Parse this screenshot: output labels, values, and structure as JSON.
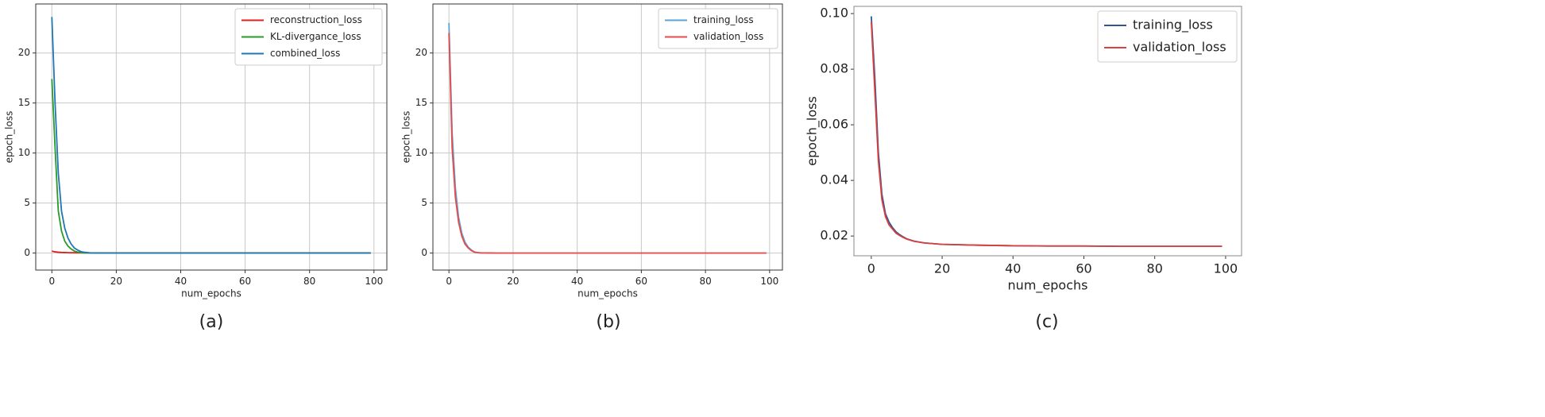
{
  "chart_data": [
    {
      "type": "line",
      "caption": "(a)",
      "xlabel": "num_epochs",
      "ylabel": "epoch_loss",
      "grid": true,
      "legend": "upper right",
      "x": [
        0,
        1,
        2,
        3,
        4,
        5,
        6,
        7,
        8,
        9,
        10,
        12,
        15,
        20,
        30,
        40,
        50,
        60,
        70,
        80,
        90,
        99
      ],
      "series": [
        {
          "name": "reconstruction_loss",
          "color": "#e0201c",
          "values": [
            0.2,
            0.12,
            0.08,
            0.06,
            0.05,
            0.04,
            0.03,
            0.03,
            0.02,
            0.02,
            0.02,
            0.02,
            0.02,
            0.02,
            0.02,
            0.02,
            0.02,
            0.02,
            0.02,
            0.02,
            0.02,
            0.02
          ]
        },
        {
          "name": "KL-divergance_loss",
          "color": "#2a9a2a",
          "values": [
            17.4,
            10.5,
            4.2,
            2.2,
            1.2,
            0.7,
            0.4,
            0.2,
            0.1,
            0.05,
            0.02,
            0.01,
            0,
            0,
            0,
            0,
            0,
            0,
            0,
            0,
            0,
            0
          ]
        },
        {
          "name": "combined_loss",
          "color": "#1f77b4",
          "values": [
            23.6,
            15,
            8,
            4.2,
            2.5,
            1.5,
            0.9,
            0.5,
            0.3,
            0.15,
            0.08,
            0.02,
            0,
            0,
            0,
            0,
            0,
            0,
            0,
            0,
            0,
            0
          ]
        }
      ],
      "xlim": [
        -5,
        104
      ],
      "ylim": [
        -1.7,
        24.9
      ],
      "xticks": [
        0,
        20,
        40,
        60,
        80,
        100
      ],
      "yticks": [
        0,
        5,
        10,
        15,
        20
      ]
    },
    {
      "type": "line",
      "caption": "(b)",
      "xlabel": "num_epochs",
      "ylabel": "epoch_loss",
      "grid": true,
      "legend": "upper right",
      "x": [
        0,
        1,
        2,
        3,
        4,
        5,
        6,
        7,
        8,
        9,
        10,
        12,
        15,
        20,
        30,
        40,
        50,
        60,
        70,
        80,
        90,
        99
      ],
      "series": [
        {
          "name": "training_loss",
          "color": "#5ba3d6",
          "values": [
            23,
            12,
            6.5,
            3.6,
            2,
            1.1,
            0.6,
            0.3,
            0.1,
            0.05,
            0.02,
            0.01,
            0,
            0,
            0,
            0,
            0,
            0,
            0,
            0,
            0,
            0
          ]
        },
        {
          "name": "validation_loss",
          "color": "#e84a4a",
          "values": [
            22,
            10.5,
            5.6,
            3.1,
            1.7,
            0.9,
            0.5,
            0.25,
            0.08,
            0.04,
            0.02,
            0.01,
            0,
            0,
            0,
            0,
            0,
            0,
            0,
            0,
            0,
            0
          ]
        }
      ],
      "xlim": [
        -5,
        104
      ],
      "ylim": [
        -1.7,
        24.9
      ],
      "xticks": [
        0,
        20,
        40,
        60,
        80,
        100
      ],
      "yticks": [
        0,
        5,
        10,
        15,
        20
      ]
    },
    {
      "type": "line",
      "caption": "(c)",
      "xlabel": "num_epochs",
      "ylabel": "epoch_loss",
      "grid": false,
      "legend": "upper right",
      "x": [
        0,
        1,
        2,
        3,
        4,
        5,
        6,
        7,
        8,
        9,
        10,
        12,
        15,
        20,
        30,
        40,
        50,
        60,
        70,
        80,
        90,
        99
      ],
      "series": [
        {
          "name": "training_loss",
          "color": "#2f5597",
          "values": [
            0.099,
            0.077,
            0.05,
            0.035,
            0.028,
            0.025,
            0.023,
            0.0215,
            0.0205,
            0.0197,
            0.019,
            0.0182,
            0.0175,
            0.017,
            0.0167,
            0.0165,
            0.0164,
            0.0164,
            0.0163,
            0.0163,
            0.0163,
            0.0163
          ]
        },
        {
          "name": "validation_loss",
          "color": "#d9403e",
          "values": [
            0.097,
            0.072,
            0.047,
            0.033,
            0.027,
            0.024,
            0.0225,
            0.021,
            0.0202,
            0.0195,
            0.0189,
            0.0181,
            0.0175,
            0.017,
            0.0167,
            0.0165,
            0.0164,
            0.0164,
            0.0163,
            0.0163,
            0.0163,
            0.0163
          ]
        }
      ],
      "xlim": [
        -4.9,
        104.5
      ],
      "ylim": [
        0.0129,
        0.1026
      ],
      "xticks": [
        0,
        20,
        40,
        60,
        80,
        100
      ],
      "yticks": [
        0.02,
        0.04,
        0.06,
        0.08,
        {
          "value": 0.1,
          "label": "0.10"
        }
      ]
    }
  ]
}
